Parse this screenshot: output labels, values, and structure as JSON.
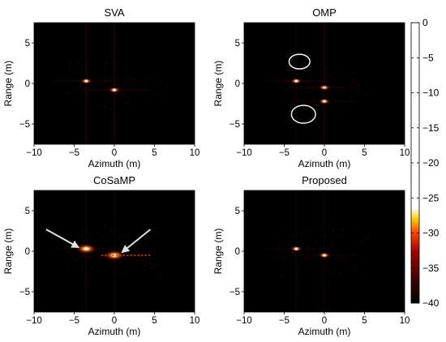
{
  "chart_data": [
    {
      "type": "heatmap",
      "title": "SVA",
      "xlabel": "Azimuth (m)",
      "ylabel": "Range (m)",
      "xlim": [
        -10,
        10
      ],
      "ylim": [
        -7.5,
        7.5
      ],
      "xticks": [
        -10,
        -5,
        0,
        5,
        10
      ],
      "yticks": [
        5,
        0,
        -5
      ],
      "scatterers": [
        {
          "x": -3.5,
          "y": 0.3,
          "db": -18,
          "note": "double peak with sidelobe cross"
        },
        {
          "x": 0,
          "y": -0.8,
          "db": -15,
          "note": "sidelobe cross"
        }
      ]
    },
    {
      "type": "heatmap",
      "title": "OMP",
      "xlabel": "Azimuth (m)",
      "ylabel": "Range (m)",
      "xlim": [
        -10,
        10
      ],
      "ylim": [
        -7.5,
        7.5
      ],
      "xticks": [
        -10,
        -5,
        0,
        5,
        10
      ],
      "yticks": [
        5,
        0,
        -5
      ],
      "scatterers": [
        {
          "x": -3.5,
          "y": 0.3,
          "db": -5
        },
        {
          "x": 0,
          "y": -0.5,
          "db": -3
        },
        {
          "x": 0,
          "y": -2.2,
          "db": -8
        }
      ],
      "annotations": [
        {
          "type": "ellipse",
          "cx": -3.1,
          "cy": 2.7,
          "rx": 1.3,
          "ry": 0.9
        },
        {
          "type": "ellipse",
          "cx": -2.6,
          "cy": -3.8,
          "rx": 1.5,
          "ry": 1.1
        }
      ]
    },
    {
      "type": "heatmap",
      "title": "CoSaMP",
      "xlabel": "Azimuth (m)",
      "ylabel": "Range (m)",
      "xlim": [
        -10,
        10
      ],
      "ylim": [
        -7.5,
        7.5
      ],
      "xticks": [
        -10,
        -5,
        0,
        5,
        10
      ],
      "yticks": [
        5,
        0,
        -5
      ],
      "scatterers": [
        {
          "x": -3.5,
          "y": 0.3,
          "db": -2
        },
        {
          "x": 0,
          "y": -0.5,
          "db": -1
        }
      ],
      "annotations": [
        {
          "type": "arrow",
          "from": [
            -8.5,
            2.7
          ],
          "to": [
            -4.5,
            0.5
          ]
        },
        {
          "type": "arrow",
          "from": [
            4.5,
            2.7
          ],
          "to": [
            1.0,
            -0.1
          ]
        }
      ]
    },
    {
      "type": "heatmap",
      "title": "Proposed",
      "xlabel": "Azimuth (m)",
      "ylabel": "Range (m)",
      "xlim": [
        -10,
        10
      ],
      "ylim": [
        -7.5,
        7.5
      ],
      "xticks": [
        -10,
        -5,
        0,
        5,
        10
      ],
      "yticks": [
        5,
        0,
        -5
      ],
      "scatterers": [
        {
          "x": -3.5,
          "y": 0.3,
          "db": -3
        },
        {
          "x": 0,
          "y": -0.5,
          "db": -5
        }
      ]
    },
    {
      "type": "colorbar",
      "range": [
        -40,
        0
      ],
      "ticks": [
        0,
        -5,
        -10,
        -15,
        -20,
        -25,
        -30,
        -35,
        -40
      ],
      "colormap": [
        "#000000",
        "#c00000",
        "#ff6600",
        "#ffdd00",
        "#ffffff"
      ]
    }
  ]
}
